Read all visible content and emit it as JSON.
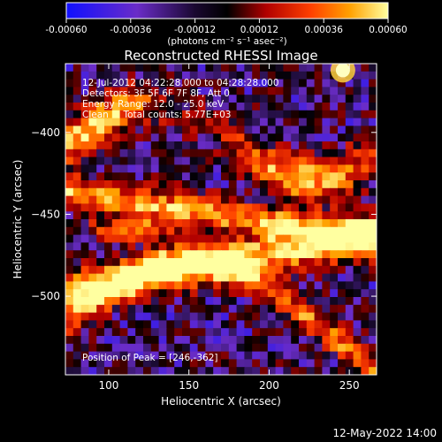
{
  "chart_data": {
    "type": "heatmap",
    "title": "Reconstructed RHESSI Image",
    "xlabel": "Heliocentric X (arcsec)",
    "ylabel": "Heliocentric Y (arcsec)",
    "xlim": [
      73,
      267
    ],
    "ylim": [
      -548,
      -358
    ],
    "x_ticks": [
      100,
      150,
      200,
      250
    ],
    "y_ticks": [
      -400,
      -450,
      -500
    ],
    "colorbar": {
      "range": [
        -0.0006,
        0.0006
      ],
      "tick_labels": [
        "-0.00060",
        "-0.00036",
        "-0.00012",
        "0.00012",
        "0.00036",
        "0.00060"
      ],
      "unit_label": "(photons cm⁻² s⁻¹ asec⁻²)",
      "colors": [
        "#1010ff",
        "#6a2cc8",
        "#000000",
        "#b00000",
        "#ff4000",
        "#ffa000",
        "#ffffa0"
      ]
    },
    "annotations": {
      "time": "12-Jul-2012 04:22:28.000 to 04:28:28.000",
      "detectors": "Detectors: 3F 5F 6F 7F 8F, Att 0",
      "energy": "Energy Range: 12.0 - 25.0 keV",
      "clean": "Clean     Total counts: 5.77E+03",
      "peak": "Position of Peak = [246,-362]"
    },
    "peak": {
      "x": 246,
      "y": -362
    },
    "footer_date": "12-May-2022 14:00"
  }
}
